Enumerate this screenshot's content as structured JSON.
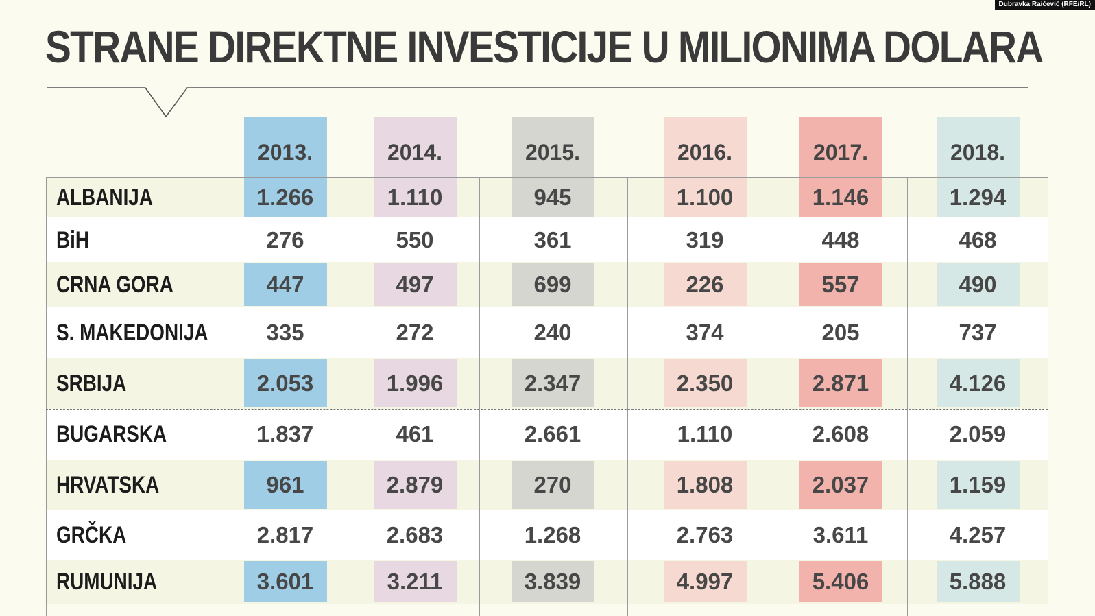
{
  "credit": "Dubravka Raičević (RFE/RL)",
  "title": "STRANE DIREKTNE INVESTICIJE U MILIONIMA DOLARA",
  "colors": {
    "2013.": "#9ecde5",
    "2014.": "#e8d8e2",
    "2015.": "#d5d6d0",
    "2016.": "#f6d9d0",
    "2017.": "#f3b3ad",
    "2018.": "#d6e8e6",
    "band": "#f5f5e4",
    "text": "#474747"
  },
  "chart_data": {
    "type": "table",
    "title": "STRANE DIREKTNE INVESTICIJE U MILIONIMA DOLARA",
    "columns": [
      "2013.",
      "2014.",
      "2015.",
      "2016.",
      "2017.",
      "2018."
    ],
    "rows": [
      {
        "country": "ALBANIJA",
        "values": [
          "1.266",
          "1.110",
          "945",
          "1.100",
          "1.146",
          "1.294"
        ]
      },
      {
        "country": "BiH",
        "values": [
          "276",
          "550",
          "361",
          "319",
          "448",
          "468"
        ]
      },
      {
        "country": "CRNA GORA",
        "values": [
          "447",
          "497",
          "699",
          "226",
          "557",
          "490"
        ]
      },
      {
        "country": "S. MAKEDONIJA",
        "values": [
          "335",
          "272",
          "240",
          "374",
          "205",
          "737"
        ]
      },
      {
        "country": "SRBIJA",
        "values": [
          "2.053",
          "1.996",
          "2.347",
          "2.350",
          "2.871",
          "4.126"
        ]
      },
      {
        "country": "BUGARSKA",
        "values": [
          "1.837",
          "461",
          "2.661",
          "1.110",
          "2.608",
          "2.059"
        ]
      },
      {
        "country": "HRVATSKA",
        "values": [
          "961",
          "2.879",
          "270",
          "1.808",
          "2.037",
          "1.159"
        ]
      },
      {
        "country": "GRČKA",
        "values": [
          "2.817",
          "2.683",
          "1.268",
          "2.763",
          "3.611",
          "4.257"
        ]
      },
      {
        "country": "RUMUNIJA",
        "values": [
          "3.601",
          "3.211",
          "3.839",
          "4.997",
          "5.406",
          "5.888"
        ]
      }
    ]
  }
}
